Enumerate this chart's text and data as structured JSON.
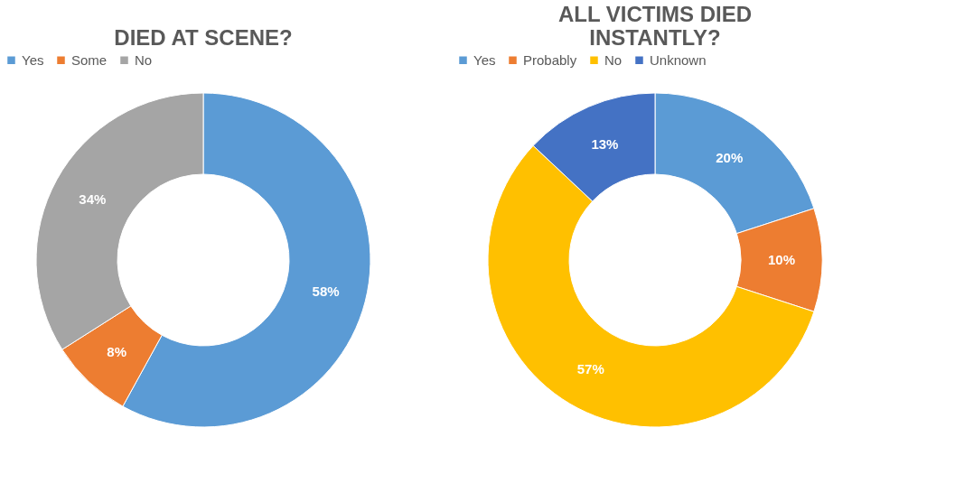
{
  "chart_data": [
    {
      "type": "donut",
      "title": "DIED AT SCENE?",
      "categories": [
        "Yes",
        "Some",
        "No"
      ],
      "values": [
        58,
        8,
        34
      ],
      "colors": [
        "#5b9bd5",
        "#ed7d31",
        "#a5a5a5"
      ],
      "value_labels": [
        "58%",
        "8%",
        "34%"
      ],
      "legend": "top"
    },
    {
      "type": "donut",
      "title": "ALL VICTIMS DIED INSTANTLY?",
      "categories": [
        "Yes",
        "Probably",
        "No",
        "Unknown"
      ],
      "values": [
        20,
        10,
        57,
        13
      ],
      "colors": [
        "#5b9bd5",
        "#ed7d31",
        "#ffc000",
        "#4472c4"
      ],
      "value_labels": [
        "20%",
        "10%",
        "57%",
        "13%"
      ],
      "legend": "top"
    }
  ]
}
